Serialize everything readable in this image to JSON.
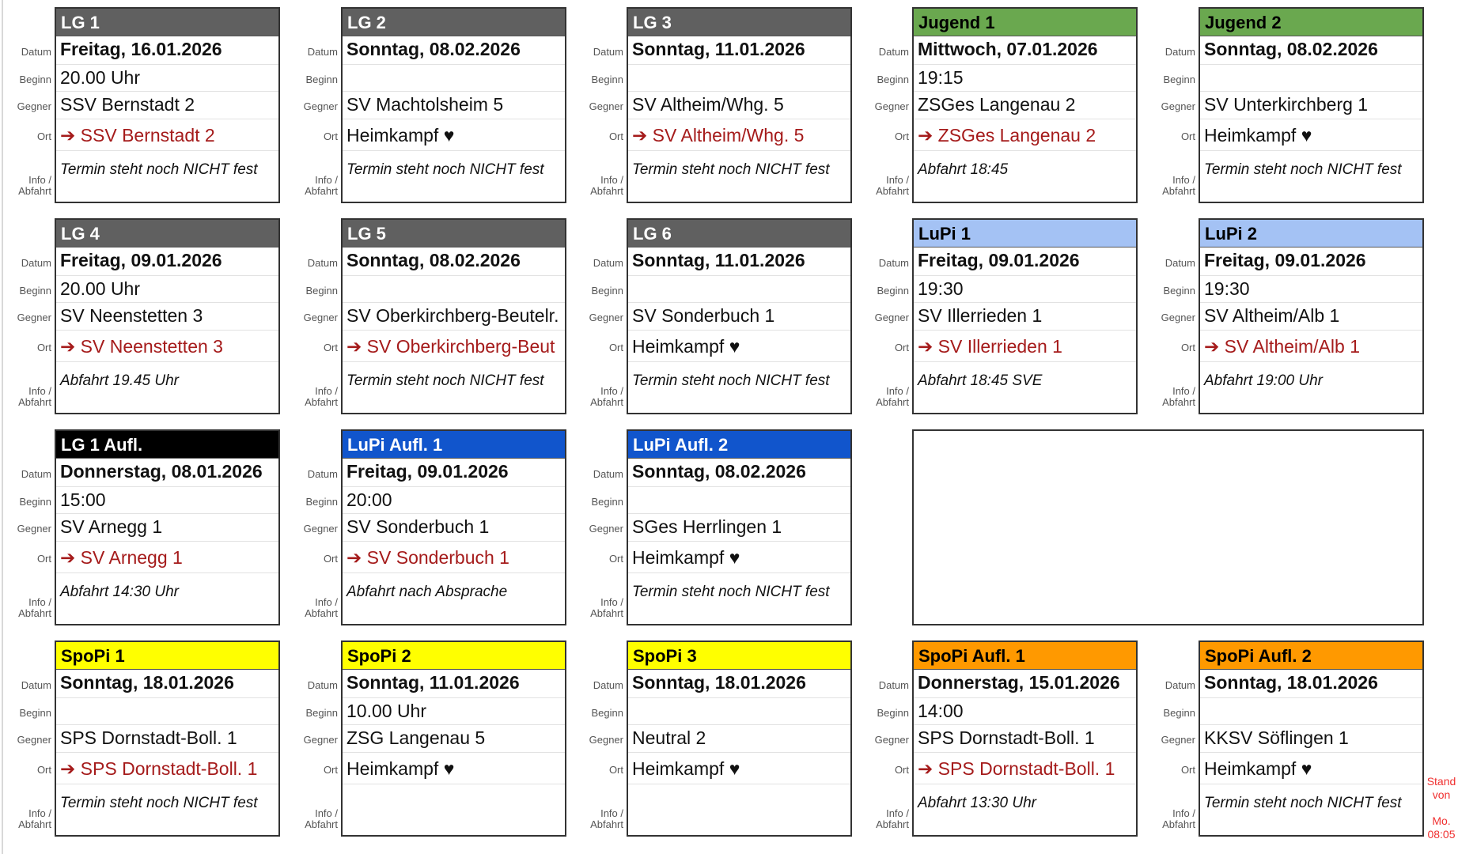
{
  "labels": {
    "datum": "Datum",
    "beginn": "Beginn",
    "gegner": "Gegner",
    "ort": "Ort",
    "info1": "Info /",
    "info2": "Abfahrt"
  },
  "home_heart_icon": "heart-icon",
  "away_arrow_icon": "arrow-right-icon",
  "colors": {
    "away_text": "#a51b1b",
    "stand_text": "#f03030"
  },
  "rows": [
    [
      {
        "title": "LG 1",
        "bg": "#606060",
        "fg": "#ffffff",
        "datum": "Freitag, 16.01.2026",
        "beginn": "20.00 Uhr",
        "gegner": "SSV Bernstadt 2",
        "ort_type": "away",
        "ort": "SSV Bernstadt 2",
        "info": "Termin steht noch NICHT fest"
      },
      {
        "title": "LG 2",
        "bg": "#606060",
        "fg": "#ffffff",
        "datum": "Sonntag, 08.02.2026",
        "beginn": "",
        "gegner": "SV Machtolsheim 5",
        "ort_type": "home",
        "ort": "Heimkampf",
        "info": "Termin steht noch NICHT fest"
      },
      {
        "title": "LG 3",
        "bg": "#606060",
        "fg": "#ffffff",
        "datum": "Sonntag, 11.01.2026",
        "beginn": "",
        "gegner": "SV Altheim/Whg. 5",
        "ort_type": "away",
        "ort": "SV Altheim/Whg. 5",
        "info": "Termin steht noch NICHT fest"
      },
      {
        "title": "Jugend 1",
        "bg": "#6aa84f",
        "fg": "#000000",
        "datum": "Mittwoch, 07.01.2026",
        "beginn": "19:15",
        "gegner": "ZSGes Langenau 2",
        "ort_type": "away",
        "ort": "ZSGes Langenau 2",
        "info": "Abfahrt 18:45"
      },
      {
        "title": "Jugend 2",
        "bg": "#6aa84f",
        "fg": "#000000",
        "datum": "Sonntag, 08.02.2026",
        "beginn": "",
        "gegner": "SV Unterkirchberg 1",
        "ort_type": "home",
        "ort": "Heimkampf",
        "info": "Termin steht noch NICHT fest"
      }
    ],
    [
      {
        "title": "LG 4",
        "bg": "#606060",
        "fg": "#ffffff",
        "datum": "Freitag, 09.01.2026",
        "beginn": "20.00 Uhr",
        "gegner": "SV Neenstetten 3",
        "ort_type": "away",
        "ort": "SV Neenstetten 3",
        "info": "Abfahrt 19.45 Uhr"
      },
      {
        "title": "LG 5",
        "bg": "#606060",
        "fg": "#ffffff",
        "datum": "Sonntag, 08.02.2026",
        "beginn": "",
        "gegner": "SV Oberkirchberg-Beutelr.",
        "ort_type": "away",
        "ort": "SV Oberkirchberg-Beut",
        "info": "Termin steht noch NICHT fest"
      },
      {
        "title": "LG 6",
        "bg": "#606060",
        "fg": "#ffffff",
        "datum": "Sonntag, 11.01.2026",
        "beginn": "",
        "gegner": "SV Sonderbuch 1",
        "ort_type": "home",
        "ort": "Heimkampf",
        "info": "Termin steht noch NICHT fest"
      },
      {
        "title": "LuPi 1",
        "bg": "#a4c2f4",
        "fg": "#000000",
        "datum": "Freitag, 09.01.2026",
        "beginn": "19:30",
        "gegner": "SV Illerrieden 1",
        "ort_type": "away",
        "ort": "SV Illerrieden 1",
        "info": "Abfahrt 18:45 SVE"
      },
      {
        "title": "LuPi 2",
        "bg": "#a4c2f4",
        "fg": "#000000",
        "datum": "Freitag, 09.01.2026",
        "beginn": "19:30",
        "gegner": "SV Altheim/Alb 1",
        "ort_type": "away",
        "ort": "SV Altheim/Alb 1",
        "info": "Abfahrt 19:00 Uhr"
      }
    ],
    [
      {
        "title": "LG 1 Aufl.",
        "bg": "#000000",
        "fg": "#ffffff",
        "datum": "Donnerstag, 08.01.2026",
        "beginn": "15:00",
        "gegner": "SV Arnegg 1",
        "ort_type": "away",
        "ort": "SV Arnegg 1",
        "info": "Abfahrt 14:30 Uhr"
      },
      {
        "title": "LuPi Aufl. 1",
        "bg": "#1155cc",
        "fg": "#ffffff",
        "datum": "Freitag, 09.01.2026",
        "beginn": "20:00",
        "gegner": "SV Sonderbuch 1",
        "ort_type": "away",
        "ort": "SV Sonderbuch 1",
        "info": "Abfahrt nach Absprache"
      },
      {
        "title": "LuPi Aufl. 2",
        "bg": "#1155cc",
        "fg": "#ffffff",
        "datum": "Sonntag, 08.02.2026",
        "beginn": "",
        "gegner": "SGes Herrlingen 1",
        "ort_type": "home",
        "ort": "Heimkampf",
        "info": "Termin steht noch NICHT fest"
      }
    ],
    [
      {
        "title": "SpoPi 1",
        "bg": "#ffff00",
        "fg": "#000000",
        "datum": "Sonntag, 18.01.2026",
        "beginn": "",
        "gegner": "SPS Dornstadt-Boll. 1",
        "ort_type": "away",
        "ort": "SPS Dornstadt-Boll. 1",
        "info": "Termin steht noch NICHT fest"
      },
      {
        "title": "SpoPi 2",
        "bg": "#ffff00",
        "fg": "#000000",
        "datum": "Sonntag, 11.01.2026",
        "beginn": "10.00 Uhr",
        "gegner": "ZSG Langenau 5",
        "ort_type": "home",
        "ort": "Heimkampf",
        "info": ""
      },
      {
        "title": "SpoPi 3",
        "bg": "#ffff00",
        "fg": "#000000",
        "datum": "Sonntag, 18.01.2026",
        "beginn": "",
        "gegner": "Neutral 2",
        "ort_type": "home",
        "ort": "Heimkampf",
        "info": ""
      },
      {
        "title": "SpoPi Aufl. 1",
        "bg": "#ff9900",
        "fg": "#000000",
        "datum": "Donnerstag, 15.01.2026",
        "beginn": "14:00",
        "gegner": "SPS Dornstadt-Boll. 1",
        "ort_type": "away",
        "ort": "SPS Dornstadt-Boll. 1",
        "info": "Abfahrt 13:30 Uhr"
      },
      {
        "title": "SpoPi Aufl. 2",
        "bg": "#ff9900",
        "fg": "#000000",
        "datum": "Sonntag, 18.01.2026",
        "beginn": "",
        "gegner": "KKSV Söflingen 1",
        "ort_type": "home",
        "ort": "Heimkampf",
        "info": "Termin steht noch NICHT fest"
      }
    ]
  ],
  "stand": {
    "line1": "Stand",
    "line2": "von",
    "line3": "Mo.",
    "line4": "08:05"
  }
}
